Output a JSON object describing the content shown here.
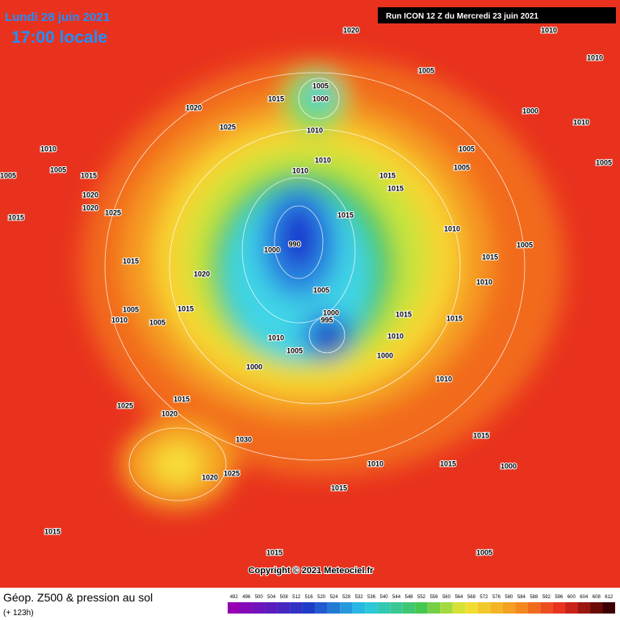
{
  "header": {
    "date": "Lundi 28 juin 2021",
    "time": "17:00 locale",
    "run": "Run ICON 12 Z du Mercredi 23 juin 2021"
  },
  "copyright": "Copyright © 2021 Meteociel.fr",
  "legend": {
    "title": "Géop. Z500 & pression au sol",
    "subtitle": "(+ 123h)",
    "ticks": [
      492,
      496,
      500,
      504,
      508,
      512,
      516,
      520,
      524,
      528,
      532,
      536,
      540,
      544,
      548,
      552,
      556,
      560,
      564,
      568,
      572,
      576,
      580,
      584,
      588,
      592,
      596,
      600,
      604,
      608,
      612
    ]
  },
  "pressure_labels": [
    "1020",
    "1010",
    "1010",
    "1005",
    "1005",
    "1000",
    "1015",
    "1020",
    "1000",
    "1010",
    "1025",
    "1010",
    "1010",
    "1005",
    "1005",
    "1005",
    "1015",
    "1010",
    "1010",
    "1015",
    "1005",
    "1005",
    "1020",
    "1015",
    "1015",
    "1020",
    "1025",
    "1015",
    "990",
    "1000",
    "1010",
    "1005",
    "1015",
    "1015",
    "1020",
    "1005",
    "1010",
    "1005",
    "1015",
    "1010",
    "1005",
    "995",
    "1000",
    "1015",
    "1015",
    "1010",
    "1010",
    "1005",
    "1000",
    "1000",
    "1010",
    "1025",
    "1015",
    "1020",
    "1030",
    "1025",
    "1020",
    "1015",
    "1015",
    "1010",
    "1015",
    "1015",
    "1015",
    "1005",
    "1000"
  ]
}
